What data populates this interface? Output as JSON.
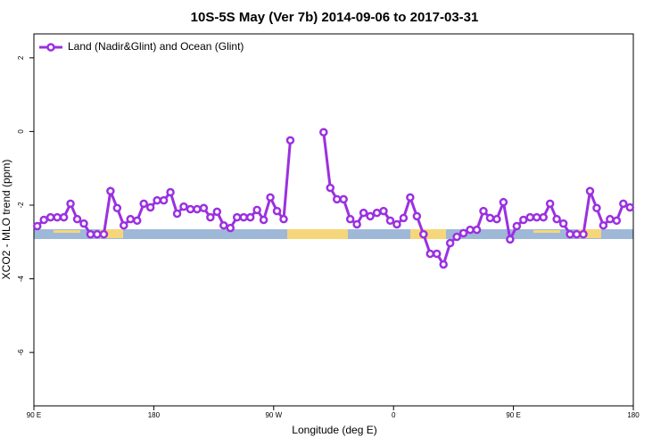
{
  "chart_data": {
    "type": "line",
    "title": "10S-5S May (Ver 7b)   2014-09-06 to 2017-03-31",
    "x_label": "Longitude (deg E)",
    "y_label": "XCO2 - MLO trend (ppm)",
    "xlim": [
      90,
      540
    ],
    "ylim": [
      -7.45,
      2.65
    ],
    "xticks": [
      {
        "value": 90,
        "label": "90 E"
      },
      {
        "value": 180,
        "label": "180"
      },
      {
        "value": 270,
        "label": "90 W"
      },
      {
        "value": 360,
        "label": "0"
      },
      {
        "value": 450,
        "label": "90 E"
      },
      {
        "value": 540,
        "label": "180"
      }
    ],
    "yticks": [
      2,
      0,
      -2,
      -4,
      -6
    ],
    "legend": "top-left",
    "x": [
      92.5,
      97.5,
      102.5,
      107.5,
      112.5,
      117.5,
      122.5,
      127.5,
      132.5,
      137.5,
      142.5,
      147.5,
      152.5,
      157.5,
      162.5,
      167.5,
      172.5,
      177.5,
      182.5,
      187.5,
      192.5,
      197.5,
      202.5,
      207.5,
      212.5,
      217.5,
      222.5,
      227.5,
      232.5,
      237.5,
      242.5,
      247.5,
      252.5,
      257.5,
      262.5,
      267.5,
      272.5,
      277.5,
      282.5,
      287.5,
      292.5,
      297.5,
      302.5,
      307.5,
      312.5,
      317.5,
      322.5,
      327.5,
      332.5,
      337.5,
      342.5,
      347.5,
      352.5,
      357.5,
      362.5,
      367.5,
      372.5,
      377.5,
      382.5,
      387.5,
      392.5,
      397.5,
      402.5,
      407.5,
      412.5,
      417.5,
      422.5,
      427.5,
      432.5,
      437.5,
      442.5,
      447.5,
      452.5,
      457.5,
      462.5,
      467.5,
      472.5,
      477.5,
      482.5,
      487.5,
      492.5,
      497.5,
      502.5,
      507.5,
      512.5,
      517.5,
      522.5,
      527.5,
      532.5,
      537.5
    ],
    "series": [
      {
        "name": "Land (Nadir&Glint) and Ocean (Glint)",
        "color": "#9b30e0",
        "values": [
          -2.57,
          -2.4,
          -2.33,
          -2.33,
          -2.33,
          -1.96,
          -2.38,
          -2.5,
          -2.79,
          -2.79,
          -2.79,
          -1.62,
          -2.08,
          -2.55,
          -2.38,
          -2.42,
          -1.96,
          -2.06,
          -1.87,
          -1.87,
          -1.65,
          -2.23,
          -2.04,
          -2.11,
          -2.11,
          -2.08,
          -2.33,
          -2.18,
          -2.55,
          -2.62,
          -2.33,
          -2.33,
          -2.33,
          -2.13,
          -2.4,
          -1.79,
          -2.16,
          -2.38,
          -0.24,
          null,
          null,
          null,
          null,
          -0.02,
          -1.53,
          -1.84,
          -1.84,
          -2.38,
          -2.52,
          -2.21,
          -2.3,
          -2.21,
          -2.16,
          -2.42,
          -2.52,
          -2.35,
          -1.79,
          -2.3,
          -2.79,
          -3.32,
          -3.32,
          -3.61,
          -3.03,
          -2.86,
          -2.76,
          -2.67,
          -2.67,
          -2.16,
          -2.35,
          -2.38,
          -1.92,
          -2.93,
          -2.57,
          -2.4,
          -2.33,
          -2.33,
          -2.33,
          -1.96,
          -2.38,
          -2.5,
          -2.79,
          -2.79,
          -2.79,
          -1.62,
          -2.08,
          -2.55,
          -2.38,
          -2.42,
          -1.96,
          -2.06
        ]
      }
    ]
  }
}
